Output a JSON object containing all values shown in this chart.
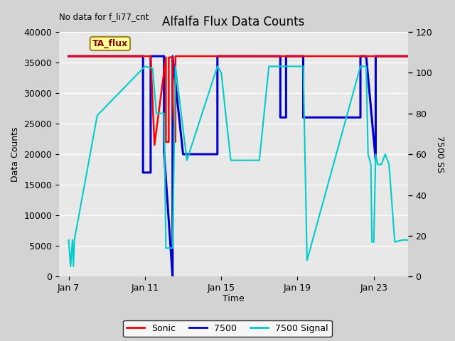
{
  "title": "Alfalfa Flux Data Counts",
  "xlabel": "Time",
  "ylabel_left": "Data Counts",
  "ylabel_right": "7500 SS",
  "annotation": "No data for f_li77_cnt",
  "tag_label": "TA_flux",
  "ylim_left": [
    0,
    40000
  ],
  "ylim_right": [
    0,
    120
  ],
  "xlim": [
    6.5,
    24.8
  ],
  "background_color": "#d3d3d3",
  "plot_bg_color": "#e8e8e8",
  "sonic_color": "#ff0000",
  "v7500_color": "#0000cc",
  "signal_color": "#00cccc",
  "sonic_x": [
    7.0,
    7.5,
    7.5,
    11.3,
    11.3,
    11.5,
    11.5,
    12.1,
    12.1,
    12.25,
    12.25,
    12.45,
    12.45,
    12.6,
    12.6,
    12.8,
    12.8,
    24.8
  ],
  "sonic_y": [
    36000,
    36000,
    36000,
    36000,
    36000,
    21500,
    21500,
    35800,
    22000,
    22000,
    35800,
    35800,
    28500,
    22000,
    36000,
    36000,
    36000,
    36000
  ],
  "v7500_x": [
    7.0,
    7.5,
    7.5,
    10.9,
    10.9,
    11.3,
    11.3,
    11.55,
    11.55,
    12.0,
    12.0,
    12.45,
    12.45,
    13.0,
    13.0,
    14.8,
    14.8,
    18.1,
    18.1,
    18.4,
    18.4,
    18.8,
    18.8,
    19.3,
    19.3,
    22.3,
    22.3,
    22.6,
    22.6,
    23.1,
    23.1,
    24.8
  ],
  "v7500_y": [
    36000,
    36000,
    36000,
    36000,
    17000,
    17000,
    36000,
    36000,
    36000,
    36000,
    20500,
    0,
    36000,
    20000,
    20000,
    20000,
    36000,
    36000,
    26000,
    26000,
    36000,
    36000,
    36000,
    36000,
    26000,
    26000,
    36000,
    36000,
    36000,
    19000,
    36000,
    36000
  ],
  "signal_x": [
    7.0,
    7.1,
    7.2,
    7.25,
    7.3,
    8.5,
    11.0,
    11.4,
    11.6,
    12.0,
    12.1,
    12.45,
    12.6,
    13.2,
    14.8,
    15.0,
    15.5,
    17.0,
    17.5,
    18.1,
    18.8,
    19.0,
    19.3,
    19.5,
    22.3,
    22.45,
    22.5,
    22.6,
    22.7,
    22.85,
    22.9,
    23.0,
    23.1,
    23.2,
    23.4,
    23.6,
    23.8,
    24.1,
    24.5,
    24.8
  ],
  "signal_y": [
    18,
    5,
    18,
    5,
    18,
    79,
    103,
    102,
    80,
    80,
    14,
    14,
    103,
    57,
    103,
    100,
    57,
    57,
    103,
    103,
    103,
    103,
    103,
    8,
    103,
    103,
    103,
    103,
    60,
    55,
    17,
    17,
    60,
    55,
    55,
    60,
    55,
    17,
    18,
    18
  ],
  "xticks": [
    7,
    11,
    15,
    19,
    23
  ],
  "xtick_labels": [
    "Jan 7",
    "Jan 11",
    "Jan 15",
    "Jan 19",
    "Jan 23"
  ]
}
